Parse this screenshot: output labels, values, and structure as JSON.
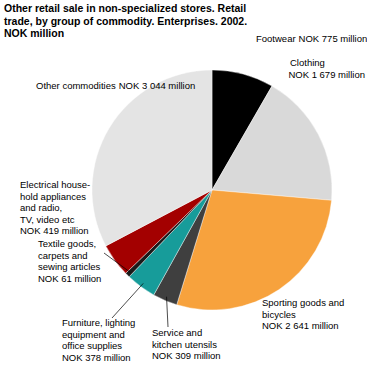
{
  "chart_data": {
    "type": "pie",
    "title": "Other retail sale in non-specialized stores. Retail\ntrade, by group of commodity. Enterprises. 2002.\nNOK million",
    "categories": [
      "Footwear",
      "Clothing",
      "Sporting goods and\nbicycles",
      "Service and\nkitchen utensils",
      "Furniture, lighting\nequipment and\noffice supplies",
      "Textile goods,\ncarpets and\nsewing articles",
      "Electrical house-\nhold appliances\nand radio,\nTV, video etc",
      "Other commodities"
    ],
    "values": [
      775,
      1679,
      2641,
      309,
      378,
      61,
      419,
      3044
    ],
    "value_labels": [
      "NOK 775 million",
      "NOK 1 679 million",
      "NOK 2 641 million",
      "NOK 309 million",
      "NOK 378 million",
      "NOK 61 million",
      "NOK 419 million",
      "NOK 3 044 million"
    ],
    "colors": [
      "#000000",
      "#d9d9d9",
      "#f7a23d",
      "#3f3f3f",
      "#179c9a",
      "#1a1a1a",
      "#a30000",
      "#e4e4e4"
    ],
    "data_labels": true
  }
}
